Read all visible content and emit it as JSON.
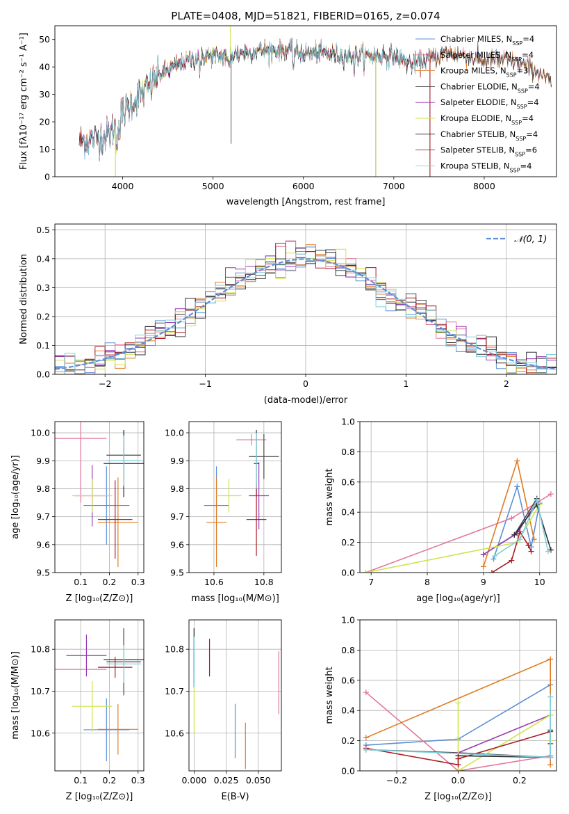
{
  "colors": {
    "Chabrier MILES": "#5b8fd6",
    "Salpeter MILES": "#e2789c",
    "Kroupa MILES": "#e07b22",
    "Chabrier ELODIE": "#4a4a4a",
    "Salpeter ELODIE": "#9a3bb5",
    "Kroupa ELODIE": "#cfe34a",
    "Chabrier STELIB": "#2f2f2f",
    "Salpeter STELIB": "#a81d24",
    "Kroupa STELIB": "#7dd0dc"
  },
  "chart_data": [
    {
      "id": "spectrum",
      "type": "line",
      "title": "PLATE=0408, MJD=51821, FIBERID=0165, z=0.074",
      "xlabel": "wavelength [Angstrom, rest frame]",
      "ylabel": "Flux [fλ10⁻¹⁷ erg cm⁻² s⁻¹ A⁻¹]",
      "xlim": [
        3250,
        8800
      ],
      "ylim": [
        0,
        55
      ],
      "xticks": [
        4000,
        5000,
        6000,
        7000,
        8000
      ],
      "yticks": [
        0,
        10,
        20,
        30,
        40,
        50
      ],
      "grid": false,
      "legend": "upper right",
      "legend_entries": [
        {
          "label": "Chabrier MILES, N",
          "sub": "SSP",
          "val": "=4",
          "key": "Chabrier MILES"
        },
        {
          "label": "Salpeter MILES, N",
          "sub": "SSP",
          "val": "=4",
          "key": "Salpeter MILES"
        },
        {
          "label": "Kroupa MILES, N",
          "sub": "SSP",
          "val": "=3",
          "key": "Kroupa MILES"
        },
        {
          "label": "Chabrier ELODIE, N",
          "sub": "SSP",
          "val": "=4",
          "key": "Chabrier ELODIE"
        },
        {
          "label": "Salpeter ELODIE, N",
          "sub": "SSP",
          "val": "=4",
          "key": "Salpeter ELODIE"
        },
        {
          "label": "Kroupa ELODIE, N",
          "sub": "SSP",
          "val": "=4",
          "key": "Kroupa ELODIE"
        },
        {
          "label": "Chabrier STELIB, N",
          "sub": "SSP",
          "val": "=4",
          "key": "Chabrier STELIB"
        },
        {
          "label": "Salpeter STELIB, N",
          "sub": "SSP",
          "val": "=6",
          "key": "Salpeter STELIB"
        },
        {
          "label": "Kroupa STELIB, N",
          "sub": "SSP",
          "val": "=4",
          "key": "Kroupa STELIB"
        }
      ],
      "continuum": [
        [
          3520,
          13
        ],
        [
          3700,
          14
        ],
        [
          3850,
          15
        ],
        [
          3950,
          20
        ],
        [
          4000,
          23
        ],
        [
          4100,
          27
        ],
        [
          4200,
          30
        ],
        [
          4300,
          33
        ],
        [
          4400,
          37
        ],
        [
          4500,
          39
        ],
        [
          4700,
          42
        ],
        [
          4900,
          44
        ],
        [
          5100,
          44
        ],
        [
          5300,
          45
        ],
        [
          5500,
          46
        ],
        [
          5800,
          46
        ],
        [
          6000,
          45
        ],
        [
          6200,
          45
        ],
        [
          6500,
          44
        ],
        [
          6800,
          44
        ],
        [
          7000,
          44
        ],
        [
          7200,
          41
        ],
        [
          7400,
          43
        ],
        [
          7600,
          45
        ],
        [
          7800,
          44
        ],
        [
          8000,
          42
        ],
        [
          8200,
          43
        ],
        [
          8400,
          41
        ],
        [
          8600,
          38
        ],
        [
          8760,
          34
        ]
      ],
      "series": [
        {
          "key": "Chabrier MILES",
          "range": [
            3550,
            8750
          ]
        },
        {
          "key": "Salpeter MILES",
          "range": [
            3550,
            8750
          ]
        },
        {
          "key": "Kroupa MILES",
          "range": [
            3550,
            8750
          ]
        },
        {
          "key": "Chabrier ELODIE",
          "range": [
            3520,
            8750
          ]
        },
        {
          "key": "Salpeter ELODIE",
          "range": [
            3550,
            6800
          ]
        },
        {
          "key": "Kroupa ELODIE",
          "range": [
            3900,
            6800
          ]
        },
        {
          "key": "Chabrier STELIB",
          "range": [
            3520,
            7400
          ]
        },
        {
          "key": "Salpeter STELIB",
          "range": [
            3520,
            7400
          ]
        },
        {
          "key": "Kroupa STELIB",
          "range": [
            3550,
            7400
          ]
        }
      ],
      "features": [
        {
          "x": 3920,
          "y": 0,
          "note": "ELODIE blue edge"
        },
        {
          "x": 5190,
          "y": 55,
          "note": "spike"
        },
        {
          "x": 5200,
          "y": 12,
          "note": "dip"
        },
        {
          "x": 6800,
          "y": 0,
          "note": "ELODIE red edge"
        },
        {
          "x": 7400,
          "y": 0,
          "note": "STELIB red edge"
        }
      ]
    },
    {
      "id": "residuals",
      "type": "histogram",
      "xlabel": "(data-model)/error",
      "ylabel": "Normed distribution",
      "xlim": [
        -2.5,
        2.5
      ],
      "ylim": [
        0,
        0.52
      ],
      "xticks": [
        -2,
        -1,
        0,
        1,
        2
      ],
      "yticks": [
        0.0,
        0.1,
        0.2,
        0.3,
        0.4,
        0.5
      ],
      "grid": true,
      "legend": "upper right",
      "legend_label": "𝒩(0, 1)",
      "bin_width": 0.1,
      "gaussian": {
        "mu": 0,
        "sigma": 1,
        "color": "#5b8fd6"
      }
    },
    {
      "id": "age_vs_Z",
      "type": "errorbar",
      "xlabel": "Z [log₁₀(Z/Z⊙)]",
      "ylabel": "age  [log₁₀(age/yr)]",
      "xlim": [
        0.01,
        0.32
      ],
      "ylim": [
        9.5,
        10.04
      ],
      "xticks": [
        0.1,
        0.2,
        0.3
      ],
      "yticks": [
        9.5,
        9.6,
        9.7,
        9.8,
        9.9,
        10.0
      ],
      "grid": true,
      "points": [
        {
          "key": "Chabrier MILES",
          "x": 0.19,
          "xerr": 0.08,
          "y": 9.74,
          "yerr": 0.14
        },
        {
          "key": "Salpeter MILES",
          "x": 0.1,
          "xerr": 0.09,
          "y": 9.98,
          "yerr": 0.23
        },
        {
          "key": "Kroupa MILES",
          "x": 0.23,
          "xerr": 0.07,
          "y": 9.68,
          "yerr": 0.16
        },
        {
          "key": "Chabrier ELODIE",
          "x": 0.25,
          "xerr": 0.06,
          "y": 9.92,
          "yerr": 0.09
        },
        {
          "key": "Salpeter ELODIE",
          "x": 0.14,
          "xerr": 0.06,
          "y": 9.775,
          "yerr": 0.11
        },
        {
          "key": "Kroupa ELODIE",
          "x": 0.14,
          "xerr": 0.07,
          "y": 9.775,
          "yerr": 0.06
        },
        {
          "key": "Chabrier STELIB",
          "x": 0.25,
          "xerr": 0.07,
          "y": 9.89,
          "yerr": 0.12
        },
        {
          "key": "Salpeter STELIB",
          "x": 0.22,
          "xerr": 0.06,
          "y": 9.69,
          "yerr": 0.14
        },
        {
          "key": "Kroupa STELIB",
          "x": 0.25,
          "xerr": 0.06,
          "y": 9.9,
          "yerr": 0.09
        }
      ]
    },
    {
      "id": "age_vs_mass",
      "type": "errorbar",
      "xlabel": "mass [log₁₀(M/M⊙)]",
      "ylabel": "",
      "xlim": [
        10.5,
        10.87
      ],
      "ylim": [
        9.5,
        10.04
      ],
      "xticks": [
        10.6,
        10.8
      ],
      "yticks": [
        9.5,
        9.6,
        9.7,
        9.8,
        9.9,
        10.0
      ],
      "grid": true,
      "points": [
        {
          "key": "Chabrier MILES",
          "x": 10.61,
          "xerr": 0.05,
          "y": 9.74,
          "yerr": 0.14
        },
        {
          "key": "Salpeter MILES",
          "x": 10.75,
          "xerr": 0.06,
          "y": 9.975,
          "yerr": 0.02
        },
        {
          "key": "Kroupa MILES",
          "x": 10.61,
          "xerr": 0.04,
          "y": 9.68,
          "yerr": 0.16
        },
        {
          "key": "Chabrier ELODIE",
          "x": 10.8,
          "xerr": 0.06,
          "y": 9.915,
          "yerr": 0.08
        },
        {
          "key": "Salpeter ELODIE",
          "x": 10.78,
          "xerr": 0.04,
          "y": 9.775,
          "yerr": 0.12
        },
        {
          "key": "Kroupa ELODIE",
          "x": 10.66,
          "xerr": 0.05,
          "y": 9.775,
          "yerr": 0.06
        },
        {
          "key": "Chabrier STELIB",
          "x": 10.77,
          "xerr": 0.01,
          "y": 9.89,
          "yerr": 0.12
        },
        {
          "key": "Salpeter STELIB",
          "x": 10.77,
          "xerr": 0.04,
          "y": 9.69,
          "yerr": 0.13
        },
        {
          "key": "Kroupa STELIB",
          "x": 10.77,
          "xerr": 0.01,
          "y": 9.9,
          "yerr": 0.1
        }
      ]
    },
    {
      "id": "mass_weight_vs_age",
      "type": "line",
      "xlabel": "age  [log₁₀(age/yr)]",
      "ylabel": "mass weight",
      "xlim": [
        6.8,
        10.3
      ],
      "ylim": [
        0,
        1.0
      ],
      "xticks": [
        7,
        8,
        9,
        10
      ],
      "yticks": [
        0.0,
        0.2,
        0.4,
        0.6,
        0.8,
        1.0
      ],
      "grid": true,
      "series": [
        {
          "key": "Chabrier MILES",
          "x": [
            9.18,
            9.6,
            9.85,
            10.0
          ],
          "y": [
            0.09,
            0.57,
            0.17,
            0.46
          ]
        },
        {
          "key": "Salpeter MILES",
          "x": [
            6.9,
            9.5,
            10.2
          ],
          "y": [
            0.0,
            0.36,
            0.52
          ]
        },
        {
          "key": "Kroupa MILES",
          "x": [
            9.0,
            9.6,
            9.9
          ],
          "y": [
            0.04,
            0.74,
            0.22
          ]
        },
        {
          "key": "Chabrier ELODIE",
          "x": [
            9.0,
            9.55,
            9.95
          ],
          "y": [
            0.12,
            0.25,
            0.49
          ]
        },
        {
          "key": "Salpeter ELODIE",
          "x": [
            9.0,
            9.6,
            9.95
          ],
          "y": [
            0.12,
            0.26,
            0.47
          ]
        },
        {
          "key": "Kroupa ELODIE",
          "x": [
            6.9,
            9.6,
            10.0
          ],
          "y": [
            0.0,
            0.2,
            0.45
          ]
        },
        {
          "key": "Chabrier STELIB",
          "x": [
            9.55,
            9.95,
            10.2
          ],
          "y": [
            0.25,
            0.45,
            0.15
          ]
        },
        {
          "key": "Salpeter STELIB",
          "x": [
            9.15,
            9.5,
            9.65,
            9.8,
            9.85
          ],
          "y": [
            0.0,
            0.08,
            0.27,
            0.18,
            0.14
          ]
        },
        {
          "key": "Kroupa STELIB",
          "x": [
            9.2,
            9.65,
            9.95,
            10.15
          ],
          "y": [
            0.11,
            0.22,
            0.48,
            0.14
          ]
        }
      ]
    },
    {
      "id": "mass_vs_Z",
      "type": "errorbar",
      "xlabel": "Z [log₁₀(Z/Z⊙)]",
      "ylabel": "mass [log₁₀(M/M⊙)]",
      "xlim": [
        0.01,
        0.32
      ],
      "ylim": [
        10.51,
        10.87
      ],
      "xticks": [
        0.1,
        0.2,
        0.3
      ],
      "yticks": [
        10.6,
        10.7,
        10.8
      ],
      "grid": true,
      "points": [
        {
          "key": "Chabrier MILES",
          "x": 0.19,
          "xerr": 0.08,
          "y": 10.608,
          "yerr": 0.075
        },
        {
          "key": "Salpeter MILES",
          "x": 0.1,
          "xerr": 0.09,
          "y": 10.752,
          "yerr": 0.0
        },
        {
          "key": "Kroupa MILES",
          "x": 0.23,
          "xerr": 0.07,
          "y": 10.609,
          "yerr": 0.06
        },
        {
          "key": "Chabrier ELODIE",
          "x": 0.25,
          "xerr": 0.06,
          "y": 10.77,
          "yerr": 0.08
        },
        {
          "key": "Salpeter ELODIE",
          "x": 0.12,
          "xerr": 0.07,
          "y": 10.785,
          "yerr": 0.05
        },
        {
          "key": "Kroupa ELODIE",
          "x": 0.14,
          "xerr": 0.07,
          "y": 10.664,
          "yerr": 0.06
        },
        {
          "key": "Chabrier STELIB",
          "x": 0.25,
          "xerr": 0.07,
          "y": 10.775,
          "yerr": 0.0
        },
        {
          "key": "Salpeter STELIB",
          "x": 0.22,
          "xerr": 0.06,
          "y": 10.757,
          "yerr": 0.025
        },
        {
          "key": "Kroupa STELIB",
          "x": 0.25,
          "xerr": 0.06,
          "y": 10.765,
          "yerr": 0.045
        }
      ]
    },
    {
      "id": "mass_vs_EBV",
      "type": "errorbar",
      "xlabel": "E(B-V)",
      "ylabel": "",
      "xlim": [
        -0.004,
        0.068
      ],
      "ylim": [
        10.51,
        10.87
      ],
      "xticks": [
        0.0,
        0.025,
        0.05
      ],
      "xticklabels": [
        "0.000",
        "0.025",
        "0.050"
      ],
      "yticks": [
        10.6,
        10.7,
        10.8
      ],
      "grid": true,
      "points": [
        {
          "key": "Chabrier MILES",
          "x": 0.032,
          "xerr": 0,
          "y": 10.605,
          "yerr": 0.065
        },
        {
          "key": "Salpeter MILES",
          "x": 0.066,
          "xerr": 0,
          "y": 10.72,
          "yerr": 0.075
        },
        {
          "key": "Kroupa MILES",
          "x": 0.04,
          "xerr": 0,
          "y": 10.57,
          "yerr": 0.055
        },
        {
          "key": "Chabrier ELODIE",
          "x": 0.0,
          "xerr": 0,
          "y": 10.78,
          "yerr": 0.07
        },
        {
          "key": "Salpeter ELODIE",
          "x": 0.0,
          "xerr": 0,
          "y": 10.785,
          "yerr": 0.04
        },
        {
          "key": "Kroupa ELODIE",
          "x": 0.0,
          "xerr": 0,
          "y": 10.66,
          "yerr": 0.06
        },
        {
          "key": "Chabrier STELIB",
          "x": 0.0,
          "xerr": 0,
          "y": 10.78,
          "yerr": 0.07
        },
        {
          "key": "Salpeter STELIB",
          "x": 0.012,
          "xerr": 0,
          "y": 10.78,
          "yerr": 0.045
        },
        {
          "key": "Kroupa STELIB",
          "x": 0.0,
          "xerr": 0,
          "y": 10.77,
          "yerr": 0.06
        }
      ]
    },
    {
      "id": "mass_weight_vs_Z",
      "type": "line",
      "xlabel": "Z [log₁₀(Z/Z⊙)]",
      "ylabel": "mass weight",
      "xlim": [
        -0.32,
        0.32
      ],
      "ylim": [
        0,
        1.0
      ],
      "xticks": [
        -0.2,
        0.0,
        0.2
      ],
      "yticks": [
        0.0,
        0.2,
        0.4,
        0.6,
        0.8,
        1.0
      ],
      "grid": true,
      "series": [
        {
          "key": "Chabrier MILES",
          "x": [
            -0.3,
            0.0,
            0.3
          ],
          "y": [
            0.17,
            0.21,
            0.57
          ]
        },
        {
          "key": "Salpeter MILES",
          "x": [
            -0.3,
            0.0,
            0.3,
            0.3
          ],
          "y": [
            0.52,
            0.0,
            0.1,
            0.37
          ]
        },
        {
          "key": "Kroupa MILES",
          "x": [
            -0.3,
            0.3,
            0.3
          ],
          "y": [
            0.22,
            0.74,
            0.04
          ]
        },
        {
          "key": "Chabrier ELODIE",
          "x": [
            -0.3,
            0.0,
            0.3
          ],
          "y": [
            0.14,
            0.12,
            0.09
          ]
        },
        {
          "key": "Salpeter ELODIE",
          "x": [
            0.0,
            0.3
          ],
          "y": [
            0.12,
            0.37
          ]
        },
        {
          "key": "Kroupa ELODIE",
          "x": [
            0.0,
            0.0,
            0.3,
            0.3
          ],
          "y": [
            0.45,
            0.0,
            0.37,
            0.2
          ]
        },
        {
          "key": "Chabrier STELIB",
          "x": [
            0.0,
            0.3,
            0.3
          ],
          "y": [
            0.1,
            0.09,
            0.27
          ]
        },
        {
          "key": "Salpeter STELIB",
          "x": [
            -0.3,
            0.0,
            0.0,
            0.3,
            0.3
          ],
          "y": [
            0.15,
            0.04,
            0.08,
            0.26,
            0.18
          ]
        },
        {
          "key": "Kroupa STELIB",
          "x": [
            -0.3,
            0.3,
            0.3
          ],
          "y": [
            0.14,
            0.09,
            0.49
          ]
        }
      ]
    }
  ]
}
